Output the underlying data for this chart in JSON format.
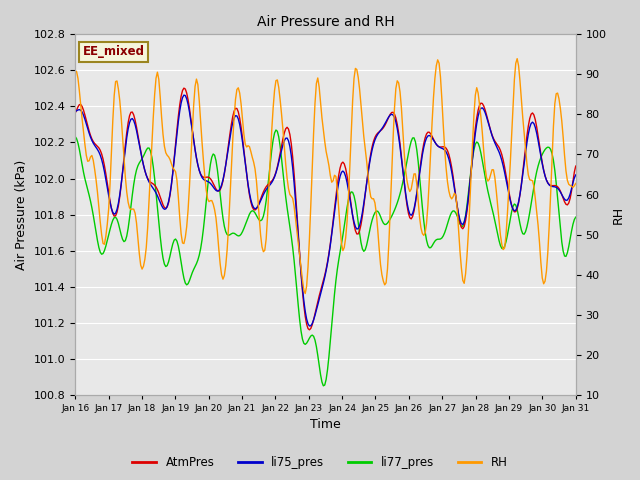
{
  "title": "Air Pressure and RH",
  "xlabel": "Time",
  "ylabel_left": "Air Pressure (kPa)",
  "ylabel_right": "RH",
  "ylim_left": [
    100.8,
    102.8
  ],
  "ylim_right": [
    10,
    100
  ],
  "yticks_left": [
    100.8,
    101.0,
    101.2,
    101.4,
    101.6,
    101.8,
    102.0,
    102.2,
    102.4,
    102.6,
    102.8
  ],
  "yticks_right": [
    10,
    20,
    30,
    40,
    50,
    60,
    70,
    80,
    90,
    100
  ],
  "xtick_labels": [
    "Jan 16",
    "Jan 17",
    "Jan 18",
    "Jan 19",
    "Jan 20",
    "Jan 21",
    "Jan 22",
    "Jan 23",
    "Jan 24",
    "Jan 25",
    "Jan 26",
    "Jan 27",
    "Jan 28",
    "Jan 29",
    "Jan 30",
    "Jan 31"
  ],
  "colors": {
    "AtmPres": "#dd0000",
    "li75_pres": "#0000cc",
    "li77_pres": "#00cc00",
    "RH": "#ff9900"
  },
  "annotation_text": "EE_mixed",
  "annotation_color": "#8b0000",
  "annotation_bg": "#f5f5dc",
  "annotation_border": "#9b8520",
  "background_color": "#d3d3d3",
  "plot_bg_color": "#e8e8e8",
  "grid_color": "#ffffff",
  "linewidth": 1.0,
  "legend_labels": [
    "AtmPres",
    "li75_pres",
    "li77_pres",
    "RH"
  ]
}
